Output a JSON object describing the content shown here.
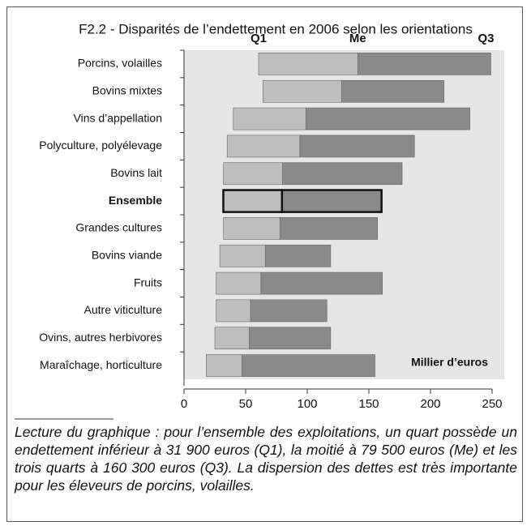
{
  "chart_data": {
    "type": "bar",
    "orientation": "horizontal",
    "title": "F2.2 - Disparités de l’endettement en 2006 selon les orientations",
    "markers": [
      "Q1",
      "Me",
      "Q3"
    ],
    "categories": [
      "Porcins, volailles",
      "Bovins mixtes",
      "Vins d’appellation",
      "Polyculture, polyélevage",
      "Bovins lait",
      "Ensemble",
      "Grandes cultures",
      "Bovins viande",
      "Fruits",
      "Autre viticulture",
      "Ovins, autres herbivores",
      "Maraîchage, horticulture"
    ],
    "q1": [
      60.5,
      64,
      40,
      35,
      32,
      31.9,
      32,
      29,
      26,
      26,
      25,
      18
    ],
    "me": [
      141,
      128,
      99,
      94,
      80,
      79.5,
      78,
      66,
      62.5,
      54,
      53,
      47
    ],
    "q3": [
      249,
      211,
      232,
      187,
      177,
      160.3,
      157,
      119,
      161,
      116,
      119,
      155
    ],
    "colors": [
      "#bebebe",
      "#8a8a8a"
    ],
    "highlight": "Ensemble",
    "unit_label": "Millier d’euros",
    "xlim": [
      0,
      250
    ],
    "xticks": [
      0,
      50,
      100,
      150,
      200,
      250
    ],
    "note": "Lecture du graphique : pour l’ensemble des exploitations, un quart possède un endettement inférieur à 31 900 euros (Q1), la moitié à 79 500 euros (Me) et les trois quarts à 160 300 euros (Q3). La dispersion des dettes est très importante pour les éleveurs de porcins, volailles."
  }
}
